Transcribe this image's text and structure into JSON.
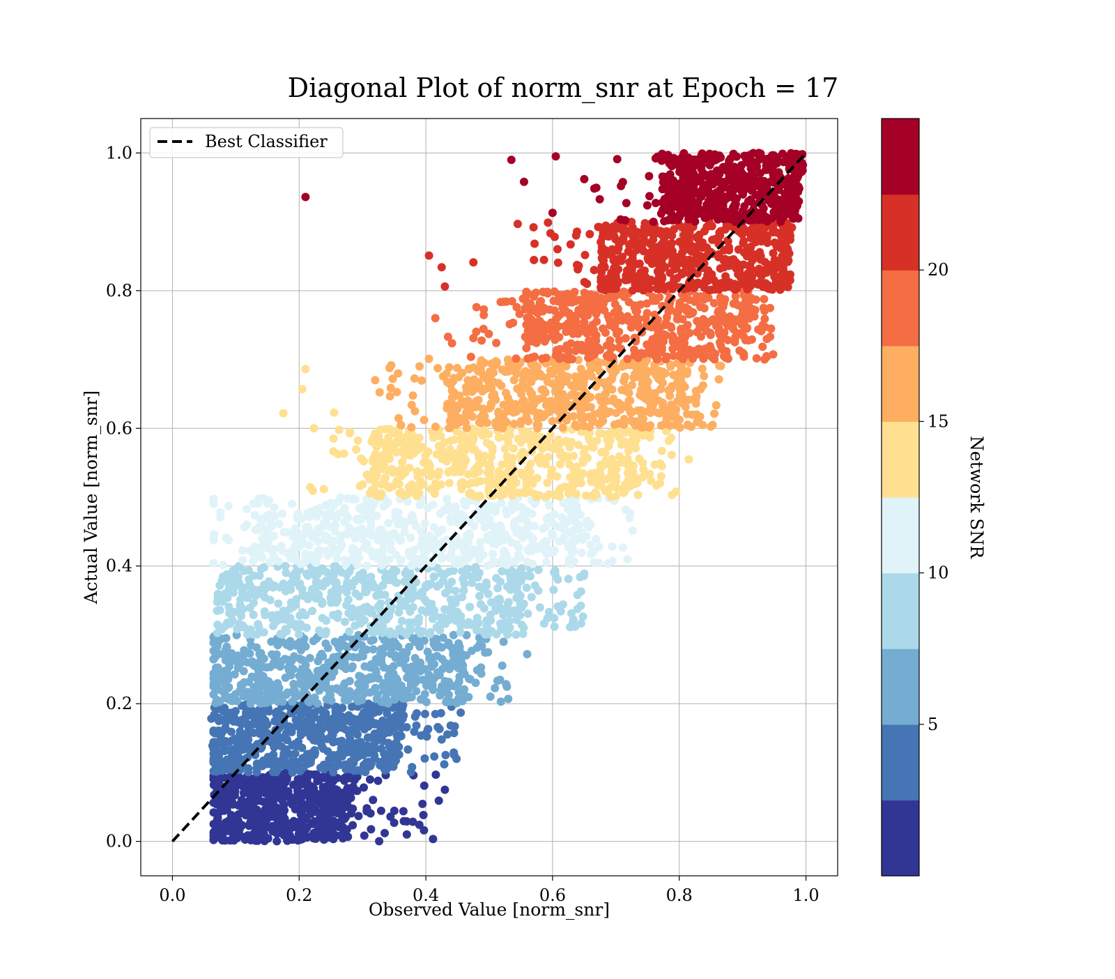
{
  "chart_data": {
    "type": "scatter",
    "title": "Diagonal Plot of norm_snr at Epoch = 17",
    "xlabel": "Observed Value [norm_snr]",
    "ylabel": "Actual Value [norm_snr]",
    "xlim": [
      -0.05,
      1.05
    ],
    "ylim": [
      -0.05,
      1.05
    ],
    "xticks": [
      "0.0",
      "0.2",
      "0.4",
      "0.6",
      "0.8",
      "1.0"
    ],
    "yticks": [
      "0.0",
      "0.2",
      "0.4",
      "0.6",
      "0.8",
      "1.0"
    ],
    "grid": true,
    "legend": {
      "position": "top-left",
      "entries": [
        "Best Classifier"
      ]
    },
    "reference_line": {
      "name": "Best Classifier",
      "style": "dashed",
      "color": "#000000",
      "x": [
        0.0,
        1.0
      ],
      "y": [
        0.0,
        1.0
      ]
    },
    "colorbar": {
      "label": "Network SNR",
      "ticks": [
        "5",
        "10",
        "15",
        "20"
      ],
      "tick_values": [
        5,
        10,
        15,
        20
      ],
      "range": [
        0.0,
        25.0
      ],
      "colors": [
        "#313695",
        "#4575b4",
        "#74add1",
        "#abd9e9",
        "#e0f3f8",
        "#fee090",
        "#fdae61",
        "#f46d43",
        "#d73027",
        "#a50026"
      ]
    },
    "bands": [
      {
        "y_range": [
          0.0,
          0.1
        ],
        "x_core": [
          0.07,
          0.27
        ],
        "x_tail": 0.43,
        "color": "#313695"
      },
      {
        "y_range": [
          0.1,
          0.2
        ],
        "x_core": [
          0.07,
          0.35
        ],
        "x_tail": 0.45,
        "color": "#4575b4"
      },
      {
        "y_range": [
          0.2,
          0.3
        ],
        "x_core": [
          0.075,
          0.45
        ],
        "x_tail": 0.53,
        "color": "#74add1"
      },
      {
        "y_range": [
          0.3,
          0.4
        ],
        "x_core": [
          0.09,
          0.55
        ],
        "x_tail": 0.65,
        "color": "#abd9e9"
      },
      {
        "y_range": [
          0.4,
          0.5
        ],
        "x_core": [
          0.13,
          0.63
        ],
        "x_tail": 0.73,
        "color": "#e0f3f8"
      },
      {
        "y_range": [
          0.5,
          0.6
        ],
        "x_core": [
          0.32,
          0.72
        ],
        "x_tail": 0.8,
        "color": "#fee090"
      },
      {
        "y_range": [
          0.6,
          0.7
        ],
        "x_core": [
          0.44,
          0.8
        ],
        "x_tail": 0.87,
        "color": "#fdae61"
      },
      {
        "y_range": [
          0.7,
          0.8
        ],
        "x_core": [
          0.56,
          0.9
        ],
        "x_tail": 0.95,
        "color": "#f46d43"
      },
      {
        "y_range": [
          0.8,
          0.9
        ],
        "x_core": [
          0.68,
          0.96
        ],
        "x_tail": 0.98,
        "color": "#d73027"
      },
      {
        "y_range": [
          0.9,
          1.0
        ],
        "x_core": [
          0.78,
          0.98
        ],
        "x_tail": 0.99,
        "color": "#a50026"
      }
    ],
    "outliers": [
      {
        "x": 0.21,
        "y": 0.936,
        "color": "#a50026"
      },
      {
        "x": 0.535,
        "y": 0.99,
        "color": "#a50026"
      },
      {
        "x": 0.605,
        "y": 0.995,
        "color": "#a50026"
      },
      {
        "x": 0.555,
        "y": 0.958,
        "color": "#a50026"
      },
      {
        "x": 0.65,
        "y": 0.962,
        "color": "#a50026"
      },
      {
        "x": 0.6,
        "y": 0.913,
        "color": "#a50026"
      },
      {
        "x": 0.405,
        "y": 0.851,
        "color": "#d73027"
      },
      {
        "x": 0.425,
        "y": 0.834,
        "color": "#d73027"
      },
      {
        "x": 0.43,
        "y": 0.806,
        "color": "#d73027"
      },
      {
        "x": 0.475,
        "y": 0.841,
        "color": "#d73027"
      },
      {
        "x": 0.545,
        "y": 0.897,
        "color": "#d73027"
      },
      {
        "x": 0.57,
        "y": 0.892,
        "color": "#d73027"
      },
      {
        "x": 0.21,
        "y": 0.686,
        "color": "#fee090"
      },
      {
        "x": 0.205,
        "y": 0.657,
        "color": "#fee090"
      },
      {
        "x": 0.175,
        "y": 0.622,
        "color": "#fee090"
      },
      {
        "x": 0.255,
        "y": 0.623,
        "color": "#fee090"
      },
      {
        "x": 0.405,
        "y": 0.701,
        "color": "#fdae61"
      },
      {
        "x": 0.415,
        "y": 0.76,
        "color": "#f46d43"
      },
      {
        "x": 0.435,
        "y": 0.733,
        "color": "#f46d43"
      },
      {
        "x": 0.475,
        "y": 0.731,
        "color": "#f46d43"
      },
      {
        "x": 0.48,
        "y": 0.776,
        "color": "#f46d43"
      },
      {
        "x": 0.39,
        "y": 0.69,
        "color": "#fdae61"
      },
      {
        "x": 0.32,
        "y": 0.67,
        "color": "#fdae61"
      },
      {
        "x": 0.795,
        "y": 0.508,
        "color": "#fee090"
      },
      {
        "x": 0.815,
        "y": 0.555,
        "color": "#fee090"
      },
      {
        "x": 0.65,
        "y": 0.389,
        "color": "#abd9e9"
      },
      {
        "x": 0.645,
        "y": 0.363,
        "color": "#abd9e9"
      },
      {
        "x": 0.56,
        "y": 0.272,
        "color": "#74add1"
      },
      {
        "x": 0.53,
        "y": 0.207,
        "color": "#74add1"
      },
      {
        "x": 0.43,
        "y": 0.075,
        "color": "#313695"
      },
      {
        "x": 0.37,
        "y": 0.01,
        "color": "#313695"
      },
      {
        "x": 0.35,
        "y": 0.027,
        "color": "#313695"
      },
      {
        "x": 0.335,
        "y": 0.012,
        "color": "#313695"
      },
      {
        "x": 0.455,
        "y": 0.187,
        "color": "#4575b4"
      },
      {
        "x": 0.425,
        "y": 0.148,
        "color": "#4575b4"
      }
    ]
  }
}
